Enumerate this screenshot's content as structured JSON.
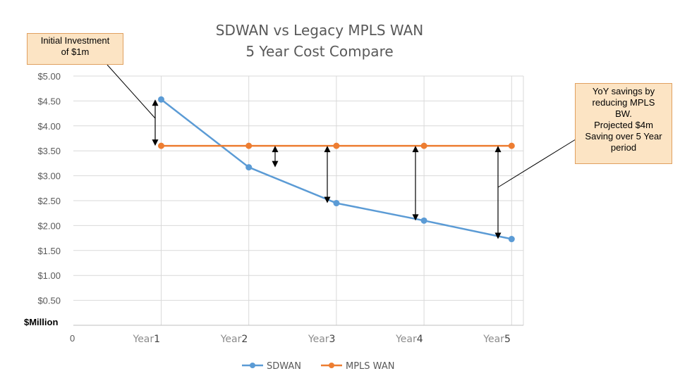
{
  "chart_data": {
    "type": "line",
    "title": [
      "SDWAN vs Legacy MPLS WAN",
      "5 Year Cost Compare"
    ],
    "y_unit_label": "$Million",
    "x_origin_label": "0",
    "categories": [
      {
        "word": "Year",
        "num": "1"
      },
      {
        "word": "Year",
        "num": "2"
      },
      {
        "word": "Year",
        "num": "3"
      },
      {
        "word": "Year",
        "num": "4"
      },
      {
        "word": "Year",
        "num": "5"
      }
    ],
    "y_ticks": [
      "$0.50",
      "$1.00",
      "$1.50",
      "$2.00",
      "$2.50",
      "$3.00",
      "$3.50",
      "$4.00",
      "$4.50",
      "$5.00"
    ],
    "ylim": [
      0,
      5
    ],
    "grid": true,
    "legend_position": "bottom",
    "series": [
      {
        "name": "SDWAN",
        "color": "#5b9bd5",
        "values": [
          4.53,
          3.17,
          2.45,
          2.1,
          1.73
        ]
      },
      {
        "name": "MPLS WAN",
        "color": "#ed7d31",
        "values": [
          3.6,
          3.6,
          3.6,
          3.6,
          3.6
        ]
      }
    ],
    "annotations": {
      "initial": [
        "Initial Investment",
        "of $1m"
      ],
      "savings": [
        "YoY savings by",
        "reducing MPLS",
        "BW.",
        "Projected $4m",
        "Saving over 5 Year",
        "period"
      ]
    }
  }
}
